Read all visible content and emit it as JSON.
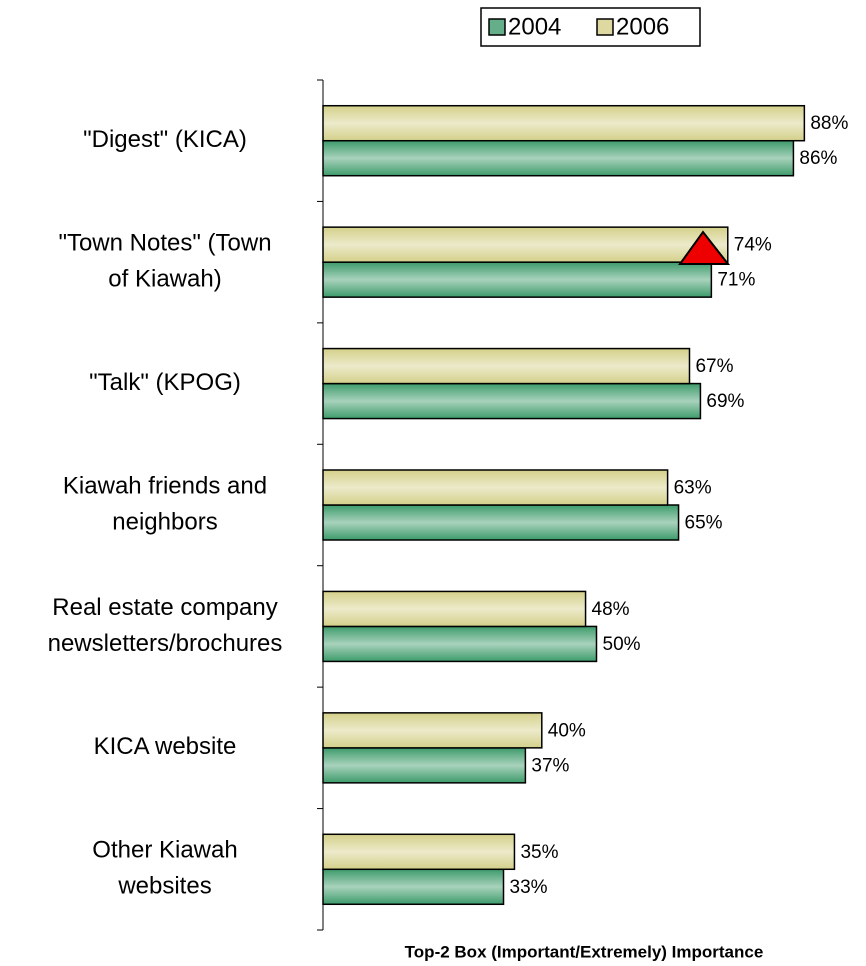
{
  "chart_data": {
    "type": "bar",
    "orientation": "horizontal",
    "categories": [
      [
        "\"Digest\" (KICA)"
      ],
      [
        "\"Town Notes\" (Town",
        "of Kiawah)"
      ],
      [
        "\"Talk\" (KPOG)"
      ],
      [
        "Kiawah friends and",
        "neighbors"
      ],
      [
        "Real estate company",
        "newsletters/brochures"
      ],
      [
        "KICA website"
      ],
      [
        "Other Kiawah",
        "websites"
      ]
    ],
    "series": [
      {
        "name": "2004",
        "color": "#3d9b6b",
        "values": [
          86,
          71,
          69,
          65,
          50,
          37,
          33
        ],
        "value_labels": [
          "86%",
          "71%",
          "69%",
          "65%",
          "50%",
          "37%",
          "33%"
        ]
      },
      {
        "name": "2006",
        "color": "#d4d08a",
        "values": [
          88,
          74,
          67,
          63,
          48,
          40,
          35
        ],
        "value_labels": [
          "88%",
          "74%",
          "67%",
          "63%",
          "48%",
          "40%",
          "35%"
        ]
      }
    ],
    "xlim": [
      0,
      100
    ],
    "xlabel": "Top-2 Box (Important/Extremely) Importance",
    "legend": "top"
  }
}
